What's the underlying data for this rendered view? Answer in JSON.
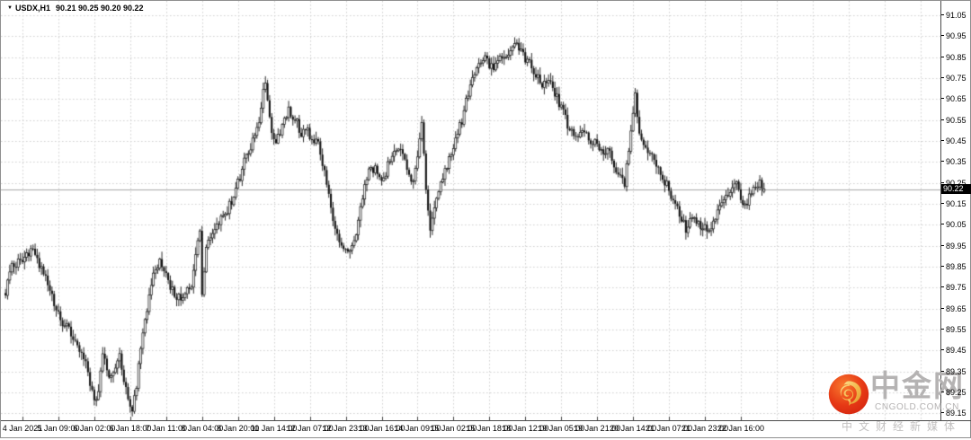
{
  "title": {
    "dropdown_icon": "▼",
    "symbol": "USDX,H1",
    "ohlc": "90.21 90.25 90.20 90.22"
  },
  "y_axis": {
    "labels": [
      "91.05",
      "90.95",
      "90.85",
      "90.75",
      "90.65",
      "90.55",
      "90.45",
      "90.35",
      "90.25",
      "90.15",
      "90.05",
      "89.95",
      "89.85",
      "89.75",
      "89.65",
      "89.55",
      "89.45",
      "89.35",
      "89.25",
      "89.15"
    ],
    "current_price": "90.22"
  },
  "x_axis": {
    "labels": [
      "4 Jan 2021",
      "5 Jan 09:00",
      "6 Jan 02:00",
      "6 Jan 18:00",
      "7 Jan 11:00",
      "8 Jan 04:00",
      "8 Jan 20:00",
      "11 Jan 14:00",
      "12 Jan 07:00",
      "12 Jan 23:00",
      "13 Jan 16:00",
      "14 Jan 09:00",
      "15 Jan 02:00",
      "15 Jan 18:00",
      "18 Jan 12:00",
      "19 Jan 05:00",
      "19 Jan 21:00",
      "20 Jan 14:00",
      "21 Jan 07:00",
      "21 Jan 23:00",
      "22 Jan 16:00"
    ]
  },
  "watermark": {
    "site_name": "中金网",
    "domain": "CNGOLD.COM.CN",
    "tagline": "中文财经新媒体"
  },
  "colors": {
    "background": "#ffffff",
    "grid": "#cfcfcf",
    "candle_outline": "#151515",
    "bull_body": "#ffffff",
    "bear_body": "#151515",
    "axis_line": "#4a4a4a",
    "current_price_line": "#a8a8a8",
    "price_tag_bg": "#000000",
    "price_tag_text": "#ffffff",
    "watermark_text": "#b5b3b3",
    "logo_red": "#e63815",
    "logo_gold": "#f2b84b"
  },
  "chart_data": {
    "type": "candlestick",
    "symbol": "USDX",
    "timeframe": "H1",
    "title": "USDX,H1 90.21 90.25 90.20 90.22",
    "legend_position": "none",
    "grid": "dashed",
    "price_axis": {
      "min": 89.15,
      "max": 91.05,
      "step": 0.1
    },
    "time_range": {
      "first_label": "4 Jan 2021",
      "last_label": "22 Jan 16:00"
    },
    "bars_total": 360,
    "bars_per_tick": 17,
    "first_tick_bar": 8,
    "last": {
      "open": 90.21,
      "high": 90.25,
      "low": 90.2,
      "close": 90.22
    },
    "extremes": {
      "high": 90.96,
      "high_near": "18 Jan 12:00",
      "low": 89.15,
      "low_near": "6 Jan 18:00"
    },
    "price_path": [
      [
        0,
        89.72
      ],
      [
        3,
        89.86
      ],
      [
        8,
        89.87
      ],
      [
        12,
        89.93
      ],
      [
        15,
        89.88
      ],
      [
        19,
        89.8
      ],
      [
        24,
        89.63
      ],
      [
        29,
        89.56
      ],
      [
        33,
        89.5
      ],
      [
        37,
        89.42
      ],
      [
        40,
        89.3
      ],
      [
        42,
        89.21
      ],
      [
        44,
        89.26
      ],
      [
        46,
        89.42
      ],
      [
        49,
        89.33
      ],
      [
        52,
        89.38
      ],
      [
        54,
        89.45
      ],
      [
        56,
        89.3
      ],
      [
        58,
        89.22
      ],
      [
        60,
        89.17
      ],
      [
        62,
        89.28
      ],
      [
        64,
        89.48
      ],
      [
        67,
        89.65
      ],
      [
        70,
        89.8
      ],
      [
        73,
        89.87
      ],
      [
        77,
        89.78
      ],
      [
        80,
        89.72
      ],
      [
        83,
        89.7
      ],
      [
        86,
        89.74
      ],
      [
        88,
        89.76
      ],
      [
        90,
        89.92
      ],
      [
        92,
        90.04
      ],
      [
        93,
        89.72
      ],
      [
        95,
        89.95
      ],
      [
        97,
        90.0
      ],
      [
        100,
        90.05
      ],
      [
        102,
        90.08
      ],
      [
        105,
        90.12
      ],
      [
        108,
        90.18
      ],
      [
        111,
        90.28
      ],
      [
        114,
        90.38
      ],
      [
        117,
        90.45
      ],
      [
        120,
        90.55
      ],
      [
        122,
        90.68
      ],
      [
        123,
        90.71
      ],
      [
        125,
        90.55
      ],
      [
        126,
        90.48
      ],
      [
        128,
        90.45
      ],
      [
        131,
        90.52
      ],
      [
        134,
        90.6
      ],
      [
        137,
        90.56
      ],
      [
        140,
        90.48
      ],
      [
        143,
        90.5
      ],
      [
        145,
        90.44
      ],
      [
        148,
        90.45
      ],
      [
        151,
        90.3
      ],
      [
        154,
        90.12
      ],
      [
        157,
        90.0
      ],
      [
        160,
        89.95
      ],
      [
        163,
        89.93
      ],
      [
        166,
        90.02
      ],
      [
        169,
        90.18
      ],
      [
        172,
        90.3
      ],
      [
        175,
        90.32
      ],
      [
        178,
        90.25
      ],
      [
        181,
        90.33
      ],
      [
        184,
        90.41
      ],
      [
        187,
        90.43
      ],
      [
        190,
        90.32
      ],
      [
        193,
        90.24
      ],
      [
        195,
        90.38
      ],
      [
        197,
        90.52
      ],
      [
        199,
        90.22
      ],
      [
        201,
        90.03
      ],
      [
        204,
        90.18
      ],
      [
        207,
        90.28
      ],
      [
        210,
        90.36
      ],
      [
        213,
        90.45
      ],
      [
        216,
        90.55
      ],
      [
        219,
        90.68
      ],
      [
        222,
        90.78
      ],
      [
        224,
        90.84
      ],
      [
        227,
        90.85
      ],
      [
        230,
        90.8
      ],
      [
        233,
        90.83
      ],
      [
        236,
        90.84
      ],
      [
        239,
        90.88
      ],
      [
        242,
        90.91
      ],
      [
        244,
        90.89
      ],
      [
        246,
        90.84
      ],
      [
        248,
        90.82
      ],
      [
        251,
        90.76
      ],
      [
        254,
        90.72
      ],
      [
        257,
        90.74
      ],
      [
        260,
        90.68
      ],
      [
        263,
        90.6
      ],
      [
        265,
        90.56
      ],
      [
        267,
        90.5
      ],
      [
        270,
        90.47
      ],
      [
        273,
        90.5
      ],
      [
        276,
        90.46
      ],
      [
        279,
        90.44
      ],
      [
        282,
        90.39
      ],
      [
        285,
        90.41
      ],
      [
        288,
        90.33
      ],
      [
        291,
        90.27
      ],
      [
        293,
        90.25
      ],
      [
        295,
        90.42
      ],
      [
        297,
        90.6
      ],
      [
        298,
        90.66
      ],
      [
        300,
        90.5
      ],
      [
        302,
        90.44
      ],
      [
        305,
        90.4
      ],
      [
        308,
        90.34
      ],
      [
        311,
        90.28
      ],
      [
        314,
        90.22
      ],
      [
        317,
        90.14
      ],
      [
        320,
        90.07
      ],
      [
        322,
        90.03
      ],
      [
        325,
        90.1
      ],
      [
        328,
        90.06
      ],
      [
        331,
        90.03
      ],
      [
        334,
        90.05
      ],
      [
        337,
        90.12
      ],
      [
        340,
        90.17
      ],
      [
        343,
        90.22
      ],
      [
        346,
        90.24
      ],
      [
        348,
        90.17
      ],
      [
        350,
        90.14
      ],
      [
        352,
        90.19
      ],
      [
        355,
        90.23
      ],
      [
        357,
        90.26
      ],
      [
        359,
        90.22
      ]
    ]
  }
}
